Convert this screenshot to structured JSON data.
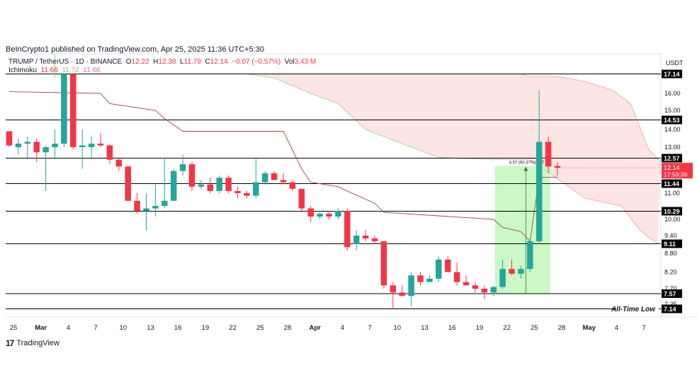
{
  "publisher_line": "BeInCrypto1 published on TradingView.com, Apr 25, 2025 11:36 UTC+5:30",
  "footer_brand": "TradingView",
  "footer_icon": "tradingview-logo-icon",
  "currency": "USDT",
  "legend": {
    "symbol": "TRUMP / TetherUS · 1D · BINANCE",
    "o_label": "O",
    "o_value": "12.22",
    "h_label": "H",
    "h_value": "12.38",
    "l_label": "L",
    "l_value": "11.79",
    "c_label": "C",
    "c_value": "12.14",
    "change": "−0.07 (−0.57%)",
    "vol_label": "Vol",
    "vol_value": "3.43 M",
    "ichimoku_label": "Ichimoku",
    "ichimoku_v1": "11.66",
    "ichimoku_v2": "11.72",
    "ichimoku_v3": "11.66"
  },
  "colors": {
    "up": "#26a69a",
    "down": "#f23645",
    "cloud_bear": "#fbdcd9",
    "cloud_bull_line": "#9ad39a",
    "kijun": "#a34a3a",
    "measure_fill": "#b9f5b3",
    "level_line": "#000000",
    "current_price": "#f23645"
  },
  "chart_data": {
    "type": "candlestick",
    "title": "",
    "xlabel": "",
    "ylabel": "",
    "x_ticks": [
      "25",
      "Mar",
      "4",
      "7",
      "10",
      "13",
      "16",
      "19",
      "22",
      "25",
      "28",
      "Apr",
      "4",
      "7",
      "10",
      "13",
      "16",
      "19",
      "22",
      "25",
      "28",
      "May",
      "4",
      "7"
    ],
    "y_ticks": [
      "16.00",
      "15.00",
      "14.00",
      "13.00",
      "11.00",
      "10.00",
      "9.40",
      "8.80",
      "8.20",
      "7.70",
      "7.25"
    ],
    "horizontal_levels": [
      "17.14",
      "14.53",
      "12.57",
      "11.44",
      "10.29",
      "9.11",
      "7.57",
      "7.14"
    ],
    "current_price": "12.14",
    "countdown": "17:53:39",
    "all_time_low_label": "All-Time Low",
    "measure_label": "4.57 (60.37%) 457",
    "candles": [
      {
        "date": "Feb 24",
        "o": 13.9,
        "h": 13.9,
        "l": 13.0,
        "c": 13.1
      },
      {
        "date": "Feb 25",
        "o": 13.0,
        "h": 13.5,
        "l": 12.7,
        "c": 13.2
      },
      {
        "date": "Feb 26",
        "o": 13.2,
        "h": 13.6,
        "l": 12.5,
        "c": 13.3
      },
      {
        "date": "Feb 27",
        "o": 13.3,
        "h": 13.5,
        "l": 12.4,
        "c": 12.8
      },
      {
        "date": "Feb 28",
        "o": 12.8,
        "h": 13.1,
        "l": 11.1,
        "c": 13.0
      },
      {
        "date": "Mar 1",
        "o": 13.0,
        "h": 14.0,
        "l": 12.6,
        "c": 13.2
      },
      {
        "date": "Mar 2",
        "o": 13.2,
        "h": 17.14,
        "l": 13.0,
        "c": 17.14
      },
      {
        "date": "Mar 3",
        "o": 17.14,
        "h": 17.14,
        "l": 12.9,
        "c": 13.0
      },
      {
        "date": "Mar 4",
        "o": 13.0,
        "h": 14.0,
        "l": 12.1,
        "c": 13.1
      },
      {
        "date": "Mar 5",
        "o": 13.0,
        "h": 13.6,
        "l": 12.6,
        "c": 13.2
      },
      {
        "date": "Mar 6",
        "o": 13.2,
        "h": 13.8,
        "l": 13.0,
        "c": 13.1
      },
      {
        "date": "Mar 7",
        "o": 13.1,
        "h": 13.2,
        "l": 12.3,
        "c": 12.5
      },
      {
        "date": "Mar 8",
        "o": 12.5,
        "h": 12.6,
        "l": 12.0,
        "c": 12.2
      },
      {
        "date": "Mar 9",
        "o": 12.2,
        "h": 12.2,
        "l": 10.7,
        "c": 10.7
      },
      {
        "date": "Mar 10",
        "o": 10.7,
        "h": 11.0,
        "l": 10.2,
        "c": 10.3
      },
      {
        "date": "Mar 11",
        "o": 10.3,
        "h": 11.0,
        "l": 9.6,
        "c": 10.4
      },
      {
        "date": "Mar 12",
        "o": 10.4,
        "h": 11.4,
        "l": 10.1,
        "c": 10.5
      },
      {
        "date": "Mar 13",
        "o": 10.5,
        "h": 12.6,
        "l": 10.4,
        "c": 10.7
      },
      {
        "date": "Mar 14",
        "o": 10.7,
        "h": 12.1,
        "l": 10.7,
        "c": 12.0
      },
      {
        "date": "Mar 15",
        "o": 12.0,
        "h": 12.7,
        "l": 11.8,
        "c": 12.3
      },
      {
        "date": "Mar 16",
        "o": 12.3,
        "h": 12.4,
        "l": 11.1,
        "c": 11.3
      },
      {
        "date": "Mar 17",
        "o": 11.3,
        "h": 11.6,
        "l": 11.2,
        "c": 11.4
      },
      {
        "date": "Mar 18",
        "o": 11.4,
        "h": 11.7,
        "l": 11.0,
        "c": 11.1
      },
      {
        "date": "Mar 19",
        "o": 11.1,
        "h": 11.8,
        "l": 11.0,
        "c": 11.7
      },
      {
        "date": "Mar 20",
        "o": 11.7,
        "h": 11.8,
        "l": 11.0,
        "c": 11.1
      },
      {
        "date": "Mar 21",
        "o": 11.1,
        "h": 11.3,
        "l": 10.8,
        "c": 11.0
      },
      {
        "date": "Mar 22",
        "o": 11.0,
        "h": 11.1,
        "l": 10.8,
        "c": 10.9
      },
      {
        "date": "Mar 23",
        "o": 10.9,
        "h": 12.6,
        "l": 10.8,
        "c": 11.5
      },
      {
        "date": "Mar 24",
        "o": 11.5,
        "h": 12.0,
        "l": 11.4,
        "c": 11.9
      },
      {
        "date": "Mar 25",
        "o": 11.9,
        "h": 12.0,
        "l": 11.6,
        "c": 11.6
      },
      {
        "date": "Mar 26",
        "o": 11.6,
        "h": 11.9,
        "l": 11.4,
        "c": 11.5
      },
      {
        "date": "Mar 27",
        "o": 11.5,
        "h": 11.6,
        "l": 11.1,
        "c": 11.2
      },
      {
        "date": "Mar 28",
        "o": 11.2,
        "h": 11.2,
        "l": 10.3,
        "c": 10.4
      },
      {
        "date": "Mar 29",
        "o": 10.4,
        "h": 10.5,
        "l": 9.9,
        "c": 10.1
      },
      {
        "date": "Mar 30",
        "o": 10.1,
        "h": 10.3,
        "l": 10.0,
        "c": 10.2
      },
      {
        "date": "Mar 31",
        "o": 10.2,
        "h": 10.3,
        "l": 10.0,
        "c": 10.1
      },
      {
        "date": "Apr 1",
        "o": 10.1,
        "h": 10.4,
        "l": 10.0,
        "c": 10.3
      },
      {
        "date": "Apr 2",
        "o": 10.3,
        "h": 10.4,
        "l": 8.9,
        "c": 9.0
      },
      {
        "date": "Apr 3",
        "o": 9.1,
        "h": 9.6,
        "l": 8.9,
        "c": 9.4
      },
      {
        "date": "Apr 4",
        "o": 9.4,
        "h": 9.6,
        "l": 9.2,
        "c": 9.3
      },
      {
        "date": "Apr 5",
        "o": 9.3,
        "h": 9.4,
        "l": 9.1,
        "c": 9.2
      },
      {
        "date": "Apr 6",
        "o": 9.2,
        "h": 9.2,
        "l": 7.7,
        "c": 7.8
      },
      {
        "date": "Apr 7",
        "o": 7.8,
        "h": 7.9,
        "l": 7.14,
        "c": 7.6
      },
      {
        "date": "Apr 8",
        "o": 7.6,
        "h": 7.8,
        "l": 7.5,
        "c": 7.5
      },
      {
        "date": "Apr 9",
        "o": 7.5,
        "h": 8.2,
        "l": 7.2,
        "c": 8.1
      },
      {
        "date": "Apr 10",
        "o": 8.1,
        "h": 8.2,
        "l": 7.8,
        "c": 7.9
      },
      {
        "date": "Apr 11",
        "o": 7.9,
        "h": 8.1,
        "l": 7.9,
        "c": 8.0
      },
      {
        "date": "Apr 12",
        "o": 8.0,
        "h": 8.7,
        "l": 7.9,
        "c": 8.6
      },
      {
        "date": "Apr 13",
        "o": 8.6,
        "h": 8.7,
        "l": 8.2,
        "c": 8.2
      },
      {
        "date": "Apr 14",
        "o": 8.2,
        "h": 8.5,
        "l": 7.8,
        "c": 7.9
      },
      {
        "date": "Apr 15",
        "o": 7.9,
        "h": 8.1,
        "l": 7.8,
        "c": 7.8
      },
      {
        "date": "Apr 16",
        "o": 7.8,
        "h": 7.9,
        "l": 7.6,
        "c": 7.7
      },
      {
        "date": "Apr 17",
        "o": 7.7,
        "h": 7.8,
        "l": 7.4,
        "c": 7.6
      },
      {
        "date": "Apr 18",
        "o": 7.6,
        "h": 7.8,
        "l": 7.5,
        "c": 7.75
      },
      {
        "date": "Apr 19",
        "o": 7.75,
        "h": 8.6,
        "l": 7.7,
        "c": 8.3
      },
      {
        "date": "Apr 20",
        "o": 8.3,
        "h": 8.6,
        "l": 8.1,
        "c": 8.15
      },
      {
        "date": "Apr 21",
        "o": 8.15,
        "h": 8.4,
        "l": 8.0,
        "c": 8.3
      },
      {
        "date": "Apr 22",
        "o": 8.3,
        "h": 9.3,
        "l": 8.2,
        "c": 9.2
      },
      {
        "date": "Apr 23",
        "o": 9.2,
        "h": 16.2,
        "l": 9.1,
        "c": 13.3
      },
      {
        "date": "Apr 24",
        "o": 13.3,
        "h": 13.6,
        "l": 11.9,
        "c": 12.2
      },
      {
        "date": "Apr 25",
        "o": 12.22,
        "h": 12.38,
        "l": 11.79,
        "c": 12.14
      }
    ],
    "tenkan_sen": [
      {
        "date": "Feb 24",
        "v": 16.1
      },
      {
        "date": "Mar 6",
        "v": 16.0
      },
      {
        "date": "Mar 7",
        "v": 15.4
      },
      {
        "date": "Mar 12",
        "v": 15.0
      },
      {
        "date": "Mar 13",
        "v": 14.6
      },
      {
        "date": "Mar 15",
        "v": 13.9
      },
      {
        "date": "Mar 26",
        "v": 13.9
      },
      {
        "date": "Mar 28",
        "v": 12.1
      },
      {
        "date": "Mar 29",
        "v": 11.5
      },
      {
        "date": "Apr 1",
        "v": 11.3
      },
      {
        "date": "Apr 2",
        "v": 11.1
      },
      {
        "date": "Apr 5",
        "v": 10.6
      },
      {
        "date": "Apr 6",
        "v": 10.25
      },
      {
        "date": "Apr 18",
        "v": 10.0
      },
      {
        "date": "Apr 19",
        "v": 9.7
      },
      {
        "date": "Apr 21",
        "v": 9.55
      },
      {
        "date": "Apr 22",
        "v": 9.2
      },
      {
        "date": "Apr 23",
        "v": 11.72
      },
      {
        "date": "Apr 25",
        "v": 11.72
      }
    ],
    "cloud_top": [
      {
        "date": "Mar 26",
        "v": 17.14
      },
      {
        "date": "Apr 21",
        "v": 17.14
      },
      {
        "date": "Apr 22",
        "v": 17.0
      },
      {
        "date": "Apr 25",
        "v": 17.0
      },
      {
        "date": "Apr 28",
        "v": 16.7
      },
      {
        "date": "May 1",
        "v": 16.2
      },
      {
        "date": "May 3",
        "v": 15.4
      },
      {
        "date": "May 5",
        "v": 12.9
      },
      {
        "date": "May 8",
        "v": 12.4
      }
    ],
    "cloud_bottom": [
      {
        "date": "Mar 22",
        "v": 17.14
      },
      {
        "date": "Mar 25",
        "v": 16.9
      },
      {
        "date": "Mar 29",
        "v": 16.0
      },
      {
        "date": "Apr 1",
        "v": 15.4
      },
      {
        "date": "Apr 4",
        "v": 14.0
      },
      {
        "date": "Apr 8",
        "v": 13.2
      },
      {
        "date": "Apr 12",
        "v": 12.6
      },
      {
        "date": "Apr 18",
        "v": 12.5
      },
      {
        "date": "Apr 22",
        "v": 12.5
      },
      {
        "date": "Apr 25",
        "v": 11.66
      },
      {
        "date": "Apr 28",
        "v": 10.8
      },
      {
        "date": "May 2",
        "v": 10.5
      },
      {
        "date": "May 4",
        "v": 9.6
      },
      {
        "date": "May 6",
        "v": 9.1
      }
    ]
  }
}
